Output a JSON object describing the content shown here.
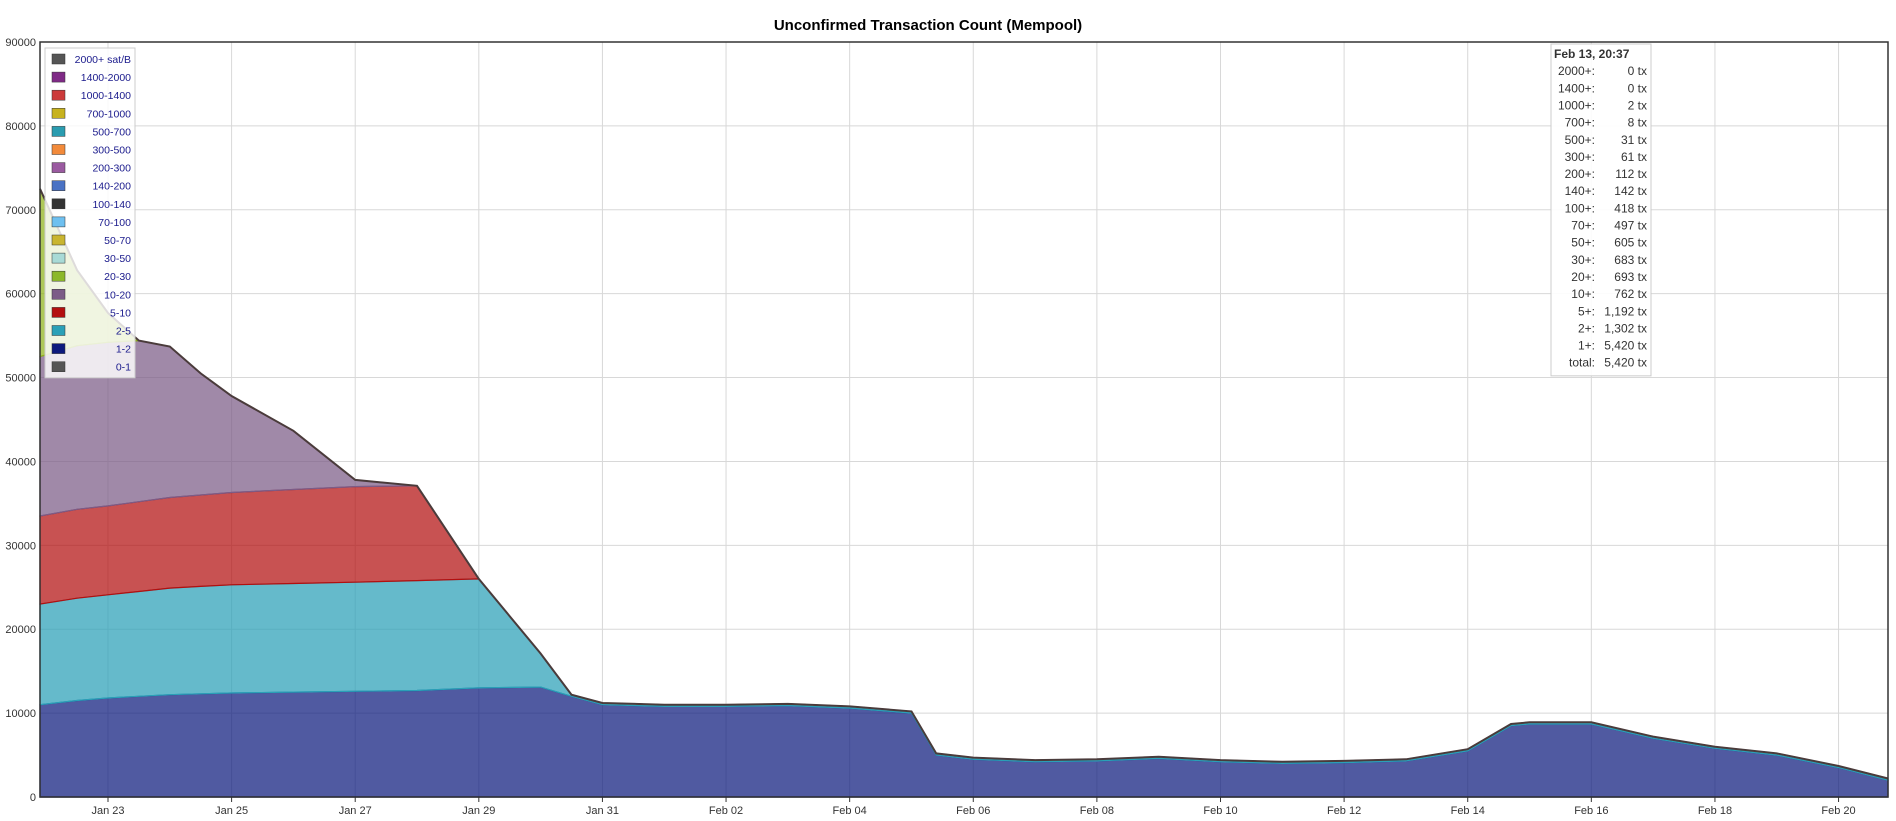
{
  "chart_data": {
    "type": "area",
    "title": "Unconfirmed Transaction Count (Mempool)",
    "xlabel": "",
    "ylabel": "",
    "ylim": [
      0,
      90000
    ],
    "y_ticks": [
      "0",
      "10000",
      "20000",
      "30000",
      "40000",
      "50000",
      "60000",
      "70000",
      "80000",
      "90000"
    ],
    "x_ticks": [
      "Jan 23",
      "Jan 25",
      "Jan 27",
      "Jan 29",
      "Jan 31",
      "Feb 02",
      "Feb 04",
      "Feb 06",
      "Feb 08",
      "Feb 10",
      "Feb 12",
      "Feb 14",
      "Feb 16",
      "Feb 18",
      "Feb 20"
    ],
    "x_tick_days": [
      0,
      2,
      4,
      6,
      8,
      10,
      12,
      14,
      16,
      18,
      20,
      22,
      24,
      26,
      28
    ],
    "x_range_days": [
      -1.1,
      28.8
    ],
    "grid": true,
    "legend_position": "top-left",
    "x_days": [
      -1.1,
      -0.5,
      0,
      0.5,
      1.0,
      1.5,
      2.0,
      3.0,
      4.0,
      5.0,
      6.0,
      7.0,
      7.5,
      8.0,
      9.0,
      10.0,
      11.0,
      12.0,
      13.0,
      13.4,
      14.0,
      15.0,
      16.0,
      17.0,
      18.0,
      19.0,
      20.0,
      21.0,
      22.0,
      22.7,
      23.0,
      24.0,
      25.0,
      26.0,
      27.0,
      28.0,
      28.8
    ],
    "series": [
      {
        "name": "0-1",
        "color": "#555555",
        "values": [
          0,
          0,
          0,
          0,
          0,
          0,
          0,
          0,
          0,
          0,
          0,
          0,
          0,
          0,
          0,
          0,
          0,
          0,
          0,
          0,
          0,
          0,
          0,
          0,
          0,
          0,
          0,
          0,
          0,
          0,
          0,
          0,
          0,
          0,
          0,
          0,
          0
        ]
      },
      {
        "name": "1-2",
        "color": "#0d1a7d",
        "values": [
          11000,
          11500,
          11800,
          12000,
          12200,
          12300,
          12400,
          12500,
          12600,
          12700,
          13000,
          13100,
          12000,
          11000,
          10800,
          10800,
          10900,
          10600,
          10000,
          5000,
          4500,
          4200,
          4300,
          4600,
          4200,
          4000,
          4100,
          4300,
          5500,
          8500,
          8700,
          8700,
          7000,
          5800,
          5000,
          3500,
          2000
        ]
      },
      {
        "name": "2-5",
        "color": "#2aa0b7",
        "values": [
          12000,
          12200,
          12300,
          12500,
          12700,
          12800,
          12900,
          12950,
          13000,
          13100,
          13000,
          4000,
          200,
          200,
          200,
          200,
          200,
          200,
          200,
          200,
          200,
          200,
          200,
          200,
          200,
          200,
          200,
          200,
          200,
          200,
          200,
          200,
          200,
          200,
          200,
          200,
          200
        ]
      },
      {
        "name": "5-10",
        "color": "#b30f0f",
        "values": [
          10500,
          10600,
          10600,
          10700,
          10800,
          10900,
          11000,
          11200,
          11400,
          11300,
          0,
          0,
          0,
          0,
          0,
          0,
          0,
          0,
          0,
          0,
          0,
          0,
          0,
          0,
          0,
          0,
          0,
          0,
          0,
          0,
          0,
          0,
          0,
          0,
          0,
          0,
          0
        ]
      },
      {
        "name": "10-20",
        "color": "#7c5c87",
        "values": [
          19000,
          19500,
          19500,
          19200,
          18000,
          14500,
          11500,
          7000,
          800,
          0,
          0,
          0,
          0,
          0,
          0,
          0,
          0,
          0,
          0,
          0,
          0,
          0,
          0,
          0,
          0,
          0,
          0,
          0,
          0,
          0,
          0,
          0,
          0,
          0,
          0,
          0,
          0
        ]
      },
      {
        "name": "20-30",
        "color": "#8fb318",
        "values": [
          20000,
          9000,
          3500,
          0,
          0,
          0,
          0,
          0,
          0,
          0,
          0,
          0,
          0,
          0,
          0,
          0,
          0,
          0,
          0,
          0,
          0,
          0,
          0,
          0,
          0,
          0,
          0,
          0,
          0,
          0,
          0,
          0,
          0,
          0,
          0,
          0,
          0
        ]
      }
    ],
    "legend": [
      "2000+ sat/B",
      "1400-2000",
      "1000-1400",
      "700-1000",
      "500-700",
      "300-500",
      "200-300",
      "140-200",
      "100-140",
      "70-100",
      "50-70",
      "30-50",
      "20-30",
      "10-20",
      "5-10",
      "2-5",
      "1-2",
      "0-1"
    ],
    "legend_colors": [
      "#555555",
      "#7f2a86",
      "#cc3a3a",
      "#c7b21e",
      "#2a9cb0",
      "#f28a3a",
      "#9a5aa0",
      "#4a72c4",
      "#333333",
      "#6ec0f0",
      "#c9b530",
      "#a8dad6",
      "#8cb82a",
      "#7c5c87",
      "#b30f0f",
      "#2aa0b7",
      "#0d1a7d",
      "#555555"
    ],
    "tooltip": {
      "header": "Feb 13, 20:37",
      "rows": [
        {
          "label": "2000+:",
          "value": "0 tx"
        },
        {
          "label": "1400+:",
          "value": "0 tx"
        },
        {
          "label": "1000+:",
          "value": "2 tx"
        },
        {
          "label": "700+:",
          "value": "8 tx"
        },
        {
          "label": "500+:",
          "value": "31 tx"
        },
        {
          "label": "300+:",
          "value": "61 tx"
        },
        {
          "label": "200+:",
          "value": "112 tx"
        },
        {
          "label": "140+:",
          "value": "142 tx"
        },
        {
          "label": "100+:",
          "value": "418 tx"
        },
        {
          "label": "70+:",
          "value": "497 tx"
        },
        {
          "label": "50+:",
          "value": "605 tx"
        },
        {
          "label": "30+:",
          "value": "683 tx"
        },
        {
          "label": "20+:",
          "value": "693 tx"
        },
        {
          "label": "10+:",
          "value": "762 tx"
        },
        {
          "label": "5+:",
          "value": "1,192 tx"
        },
        {
          "label": "2+:",
          "value": "1,302 tx"
        },
        {
          "label": "1+:",
          "value": "5,420 tx"
        },
        {
          "label": "total:",
          "value": "5,420 tx"
        }
      ]
    }
  }
}
